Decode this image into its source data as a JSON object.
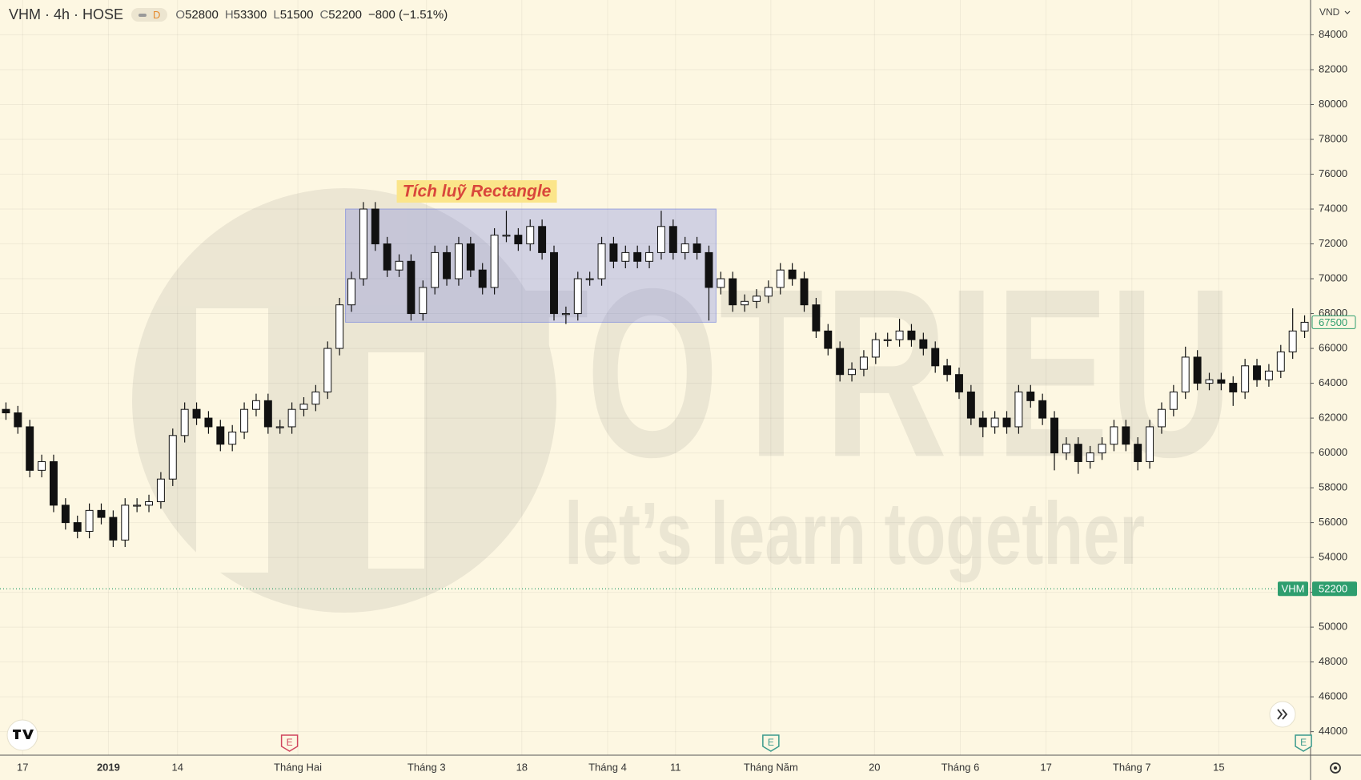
{
  "header": {
    "symbol": "VHM · 4h · HOSE",
    "badge": "D",
    "ohlc": [
      {
        "key": "O",
        "value": 52800
      },
      {
        "key": "H",
        "value": 53300
      },
      {
        "key": "L",
        "value": 51500
      },
      {
        "key": "C",
        "value": 52200
      }
    ],
    "change": "−800 (−1.51%)",
    "currency": "VND"
  },
  "watermark": {
    "brand": "TOTRIEU",
    "slogan": "let’s learn together"
  },
  "chart_data": {
    "type": "candlestick",
    "up_color": "#ffffff",
    "down_color": "#111111",
    "border_color": "#111111",
    "open": [
      62500,
      62300,
      61500,
      59000,
      59500,
      57000,
      56000,
      55500,
      56700,
      56300,
      55000,
      57000,
      57000,
      57200,
      58500,
      61000,
      62500,
      62000,
      61500,
      60500,
      61200,
      62500,
      63000,
      61500,
      61500,
      62500,
      62800,
      63500,
      66000,
      68500,
      70000,
      74000,
      72000,
      70500,
      71000,
      68000,
      69500,
      71500,
      70000,
      72000,
      70500,
      69500,
      72500,
      72500,
      72000,
      73000,
      71500,
      68000,
      68000,
      70000,
      70000,
      72000,
      71000,
      71500,
      71000,
      71500,
      73000,
      71500,
      72000,
      71500,
      69500,
      70000,
      68500,
      68700,
      69000,
      69500,
      70500,
      70000,
      68500,
      67000,
      66000,
      64500,
      64800,
      65500,
      66500,
      66500,
      67000,
      66500,
      66000,
      65000,
      64500,
      63500,
      62000,
      61500,
      62000,
      61500,
      63500,
      63000,
      62000,
      60000,
      60500,
      59500,
      60000,
      60500,
      61500,
      60500,
      59500,
      61500,
      62500,
      63500,
      65500,
      64000,
      64200,
      64000,
      63500,
      65000,
      64200,
      64700,
      65800,
      67000
    ],
    "high": [
      62900,
      62700,
      61900,
      59900,
      59900,
      57400,
      56400,
      57100,
      57100,
      56700,
      57400,
      57400,
      57600,
      58900,
      61400,
      62900,
      62900,
      62400,
      61900,
      61600,
      62900,
      63400,
      63400,
      61900,
      62900,
      63200,
      63900,
      66400,
      68900,
      70400,
      74400,
      74400,
      72400,
      71400,
      71400,
      69900,
      71900,
      71900,
      72400,
      72400,
      70900,
      72900,
      73900,
      72900,
      73400,
      73400,
      71900,
      68400,
      70400,
      70400,
      72400,
      72400,
      71900,
      71900,
      71900,
      73900,
      73400,
      72400,
      72400,
      71900,
      70400,
      70400,
      69100,
      69400,
      69900,
      70900,
      70900,
      70400,
      68900,
      67400,
      66400,
      65200,
      65900,
      66900,
      66900,
      67700,
      67400,
      66900,
      66400,
      65400,
      64900,
      63900,
      62400,
      62400,
      62400,
      63900,
      63900,
      63400,
      62400,
      60900,
      60900,
      60400,
      60900,
      61900,
      61900,
      60900,
      61900,
      62900,
      63900,
      66100,
      65900,
      64600,
      64600,
      64400,
      65400,
      65400,
      65100,
      66200,
      68300,
      67900
    ],
    "low": [
      61900,
      61100,
      58600,
      58600,
      56600,
      55600,
      55100,
      55100,
      55900,
      54600,
      54600,
      56600,
      56600,
      56800,
      58100,
      60600,
      61600,
      61100,
      60100,
      60100,
      60800,
      62100,
      61100,
      61100,
      61100,
      62100,
      62400,
      63100,
      65600,
      68100,
      69600,
      71600,
      70100,
      70100,
      67600,
      67600,
      69100,
      69600,
      69600,
      70100,
      69100,
      69100,
      72100,
      71600,
      71600,
      71100,
      67600,
      67400,
      67600,
      69600,
      69600,
      70600,
      70600,
      70600,
      70600,
      71100,
      71100,
      71100,
      71100,
      67600,
      69100,
      68100,
      68100,
      68300,
      68600,
      69100,
      69600,
      68100,
      66600,
      65600,
      64100,
      64100,
      64400,
      65100,
      66100,
      66100,
      66100,
      65600,
      64600,
      64100,
      63100,
      61600,
      60900,
      61100,
      61100,
      61100,
      62600,
      61600,
      59000,
      59600,
      58800,
      59100,
      59600,
      60100,
      60100,
      59000,
      59100,
      61100,
      62100,
      63100,
      63600,
      63600,
      63600,
      62700,
      63100,
      63800,
      63800,
      64300,
      65400,
      66600
    ],
    "close": [
      62300,
      61500,
      59000,
      59500,
      57000,
      56000,
      55500,
      56700,
      56300,
      55000,
      57000,
      57000,
      57200,
      58500,
      61000,
      62500,
      62000,
      61500,
      60500,
      61200,
      62500,
      63000,
      61500,
      61500,
      62500,
      62800,
      63500,
      66000,
      68500,
      70000,
      74000,
      72000,
      70500,
      71000,
      68000,
      69500,
      71500,
      70000,
      72000,
      70500,
      69500,
      72500,
      72500,
      72000,
      73000,
      71500,
      68000,
      68000,
      70000,
      70000,
      72000,
      71000,
      71500,
      71000,
      71500,
      73000,
      71500,
      72000,
      71500,
      69500,
      70000,
      68500,
      68700,
      69000,
      69500,
      70500,
      70000,
      68500,
      67000,
      66000,
      64500,
      64800,
      65500,
      66500,
      66500,
      67000,
      66500,
      66000,
      65000,
      64500,
      63500,
      62000,
      61500,
      62000,
      61500,
      63500,
      63000,
      62000,
      60000,
      60500,
      59500,
      60000,
      60500,
      61500,
      60500,
      59500,
      61500,
      62500,
      63500,
      65500,
      64000,
      64200,
      64000,
      63500,
      65000,
      64200,
      64700,
      65800,
      67000,
      67500
    ],
    "xticks": [
      {
        "value": 1.4,
        "label": "17"
      },
      {
        "value": 8.6,
        "label": "2019"
      },
      {
        "value": 14.4,
        "label": "14"
      },
      {
        "value": 24.5,
        "label": "Tháng Hai"
      },
      {
        "value": 35.3,
        "label": "Tháng 3"
      },
      {
        "value": 43.3,
        "label": "18"
      },
      {
        "value": 50.5,
        "label": "Tháng 4"
      },
      {
        "value": 56.2,
        "label": "11"
      },
      {
        "value": 64.2,
        "label": "Tháng Năm"
      },
      {
        "value": 72.9,
        "label": "20"
      },
      {
        "value": 80.1,
        "label": "Tháng 6"
      },
      {
        "value": 87.3,
        "label": "17"
      },
      {
        "value": 94.5,
        "label": "Tháng 7"
      },
      {
        "value": 101.8,
        "label": "15"
      }
    ],
    "ylim": [
      42650,
      86000
    ],
    "yticks": [
      44000,
      46000,
      48000,
      50000,
      52000,
      54000,
      56000,
      58000,
      60000,
      62000,
      64000,
      66000,
      68000,
      70000,
      72000,
      74000,
      76000,
      78000,
      80000,
      82000,
      84000
    ],
    "grid": true,
    "annotation": {
      "text": "Tích luỹ Rectangle",
      "x": [
        28.5,
        59.6
      ],
      "y": [
        67500,
        74000
      ],
      "color": "#6f7fe0"
    },
    "last_price": {
      "value": 67500,
      "color": "#2e9e6e"
    },
    "price_line": {
      "name": "VHM",
      "value": 52200,
      "color": "#2e9e6e"
    },
    "events": [
      {
        "label": "E",
        "x": 23.8,
        "color": "#d0455e"
      },
      {
        "label": "E",
        "x": 64.2,
        "color": "#3a9a8c"
      },
      {
        "label": "E",
        "x": 108.9,
        "color": "#3a9a8c"
      }
    ]
  }
}
